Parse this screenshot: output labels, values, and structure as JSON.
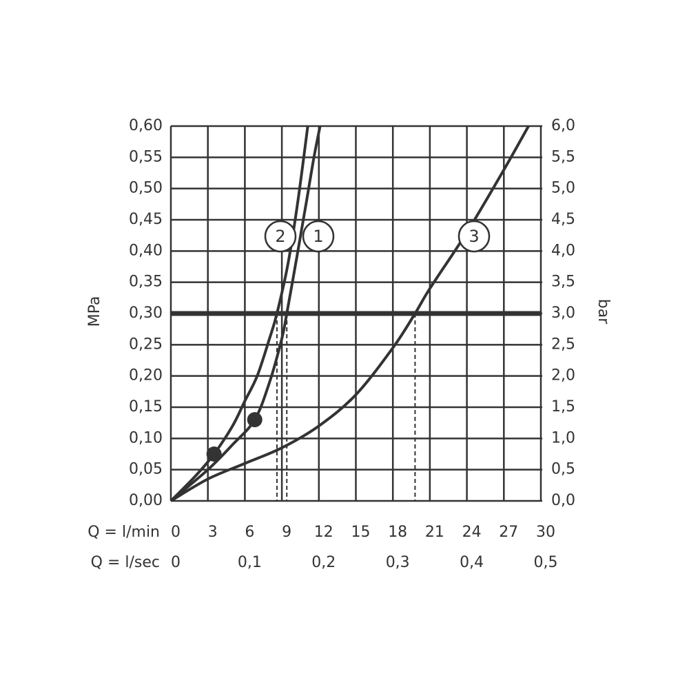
{
  "chart_data": {
    "type": "line",
    "ylabel": "MPa",
    "y2label": "bar",
    "xlabel": "Q = l/min",
    "x2label": "Q = l/sec",
    "xlim": [
      0,
      30
    ],
    "xticks": [
      0,
      3,
      6,
      9,
      12,
      15,
      18,
      21,
      24,
      27,
      30
    ],
    "x2lim": [
      0,
      0.5
    ],
    "x2ticks": [
      0,
      {
        "value": 0.1,
        "label": "0,1"
      },
      {
        "value": 0.2,
        "label": "0,2"
      },
      {
        "value": 0.3,
        "label": "0,3"
      },
      {
        "value": 0.4,
        "label": "0,4"
      },
      {
        "value": 0.5,
        "label": "0,5"
      }
    ],
    "ylim": [
      0,
      0.6
    ],
    "yticks": [
      {
        "value": 0,
        "label": "0,00"
      },
      {
        "value": 0.05,
        "label": "0,05"
      },
      {
        "value": 0.1,
        "label": "0,10"
      },
      {
        "value": 0.15,
        "label": "0,15"
      },
      {
        "value": 0.2,
        "label": "0,20"
      },
      {
        "value": 0.25,
        "label": "0,25"
      },
      {
        "value": 0.3,
        "label": "0,30"
      },
      {
        "value": 0.35,
        "label": "0,35"
      },
      {
        "value": 0.4,
        "label": "0,40"
      },
      {
        "value": 0.45,
        "label": "0,45"
      },
      {
        "value": 0.5,
        "label": "0,50"
      },
      {
        "value": 0.55,
        "label": "0,55"
      },
      {
        "value": 0.6,
        "label": "0,60"
      }
    ],
    "y2lim": [
      0,
      6
    ],
    "y2ticks": [
      {
        "value": 0,
        "label": "0,0"
      },
      {
        "value": 0.5,
        "label": "0,5"
      },
      {
        "value": 1,
        "label": "1,0"
      },
      {
        "value": 1.5,
        "label": "1,5"
      },
      {
        "value": 2,
        "label": "2,0"
      },
      {
        "value": 2.5,
        "label": "2,5"
      },
      {
        "value": 3,
        "label": "3,0"
      },
      {
        "value": 3.5,
        "label": "3,5"
      },
      {
        "value": 4,
        "label": "4,0"
      },
      {
        "value": 4.5,
        "label": "4,5"
      },
      {
        "value": 5,
        "label": "5,0"
      },
      {
        "value": 5.5,
        "label": "5,5"
      },
      {
        "value": 6,
        "label": "6,0"
      }
    ],
    "grid": true,
    "color": "#333333",
    "hline": 0.3,
    "dashed_x": [
      8.6,
      9.4,
      19.8
    ],
    "markers": [
      {
        "x": 3.5,
        "y": 0.075
      },
      {
        "x": 6.8,
        "y": 0.13
      }
    ],
    "series": [
      {
        "name": "1",
        "color": "#333333",
        "x": [
          0,
          3,
          5,
          6.8,
          8,
          9,
          9.4,
          10.3,
          11,
          11.6,
          12.1
        ],
        "y": [
          0,
          0.05,
          0.09,
          0.13,
          0.19,
          0.26,
          0.3,
          0.4,
          0.48,
          0.55,
          0.6
        ]
      },
      {
        "name": "2",
        "color": "#333333",
        "x": [
          0,
          2,
          3.5,
          5,
          6,
          7,
          8,
          8.6,
          9.5,
          10.3,
          11.1
        ],
        "y": [
          0,
          0.04,
          0.075,
          0.12,
          0.16,
          0.2,
          0.26,
          0.3,
          0.38,
          0.48,
          0.6
        ]
      },
      {
        "name": "3",
        "color": "#333333",
        "x": [
          0,
          3,
          6,
          9,
          12,
          15,
          18,
          19.8,
          21,
          24,
          27,
          29
        ],
        "y": [
          0,
          0.035,
          0.06,
          0.085,
          0.12,
          0.17,
          0.245,
          0.3,
          0.34,
          0.43,
          0.53,
          0.6
        ]
      }
    ]
  }
}
